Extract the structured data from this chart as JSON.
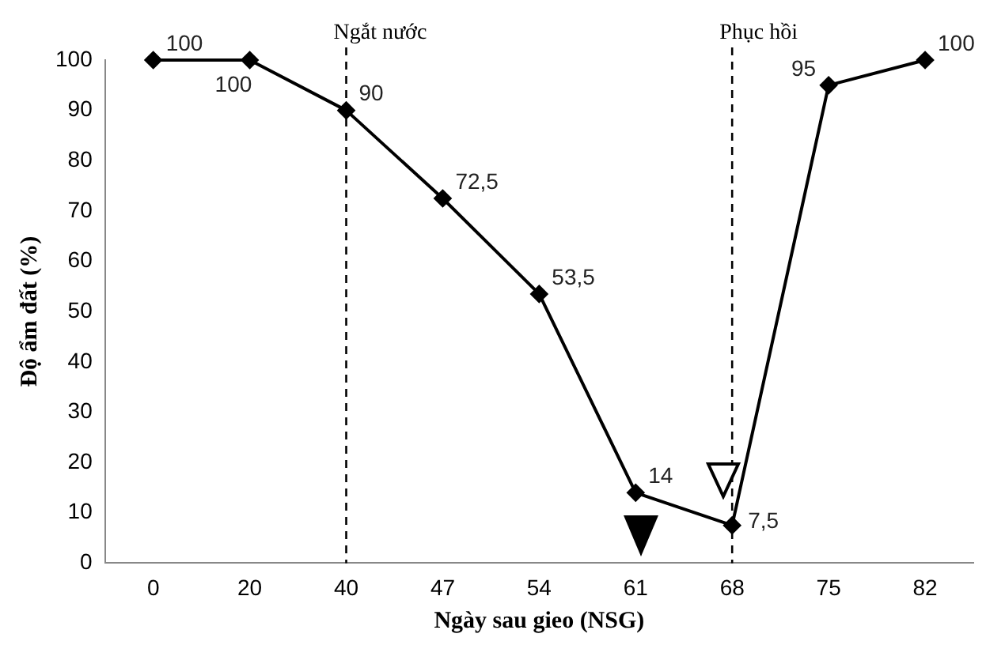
{
  "chart_data": {
    "type": "line",
    "xlabel": "Ngày sau gieo (NSG)",
    "ylabel": "Độ ẩm đất (%)",
    "categories": [
      "0",
      "20",
      "40",
      "47",
      "54",
      "61",
      "68",
      "75",
      "82"
    ],
    "series": [
      {
        "color": "#000000",
        "values": [
          100,
          100,
          90,
          72.5,
          53.5,
          14,
          7.5,
          95,
          100
        ],
        "value_labels": [
          "100",
          "100",
          "90",
          "72,5",
          "53,5",
          "14",
          "7,5",
          "95",
          "100"
        ]
      }
    ],
    "ylim": [
      0,
      100
    ],
    "yticks": [
      0,
      10,
      20,
      30,
      40,
      50,
      60,
      70,
      80,
      90,
      100
    ],
    "grid": false,
    "legend": false,
    "marker": "diamond",
    "line_style": "solid",
    "ref_lines": [
      {
        "axis": "x",
        "value": "40",
        "label": "Ngắt nước",
        "line_style": "dashed",
        "color": "#000000"
      },
      {
        "axis": "x",
        "value": "68",
        "label": "Phục hồi",
        "line_style": "dashed",
        "color": "#000000"
      }
    ]
  }
}
